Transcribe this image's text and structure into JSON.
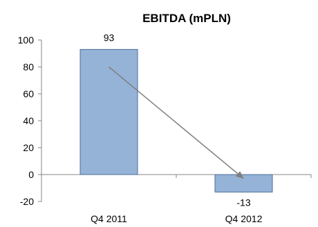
{
  "chart_data": {
    "type": "bar",
    "title": "EBITDA (mPLN)",
    "categories": [
      "Q4 2011",
      "Q4 2012"
    ],
    "values": [
      93,
      -13
    ],
    "data_labels": [
      "93",
      "-13"
    ],
    "ylim": [
      -20,
      100
    ],
    "yticks": [
      -20,
      0,
      20,
      40,
      60,
      80,
      100
    ],
    "ytick_labels": [
      "-20",
      "0",
      "20",
      "40",
      "60",
      "80",
      "100"
    ],
    "grid": false,
    "legend": "none",
    "bar_color": "#95b3d7",
    "bar_edge_color": "#4a6c99",
    "trend_arrow": {
      "from": [
        0,
        80
      ],
      "to": [
        1,
        -3
      ],
      "color": "#7f7f7f"
    }
  }
}
